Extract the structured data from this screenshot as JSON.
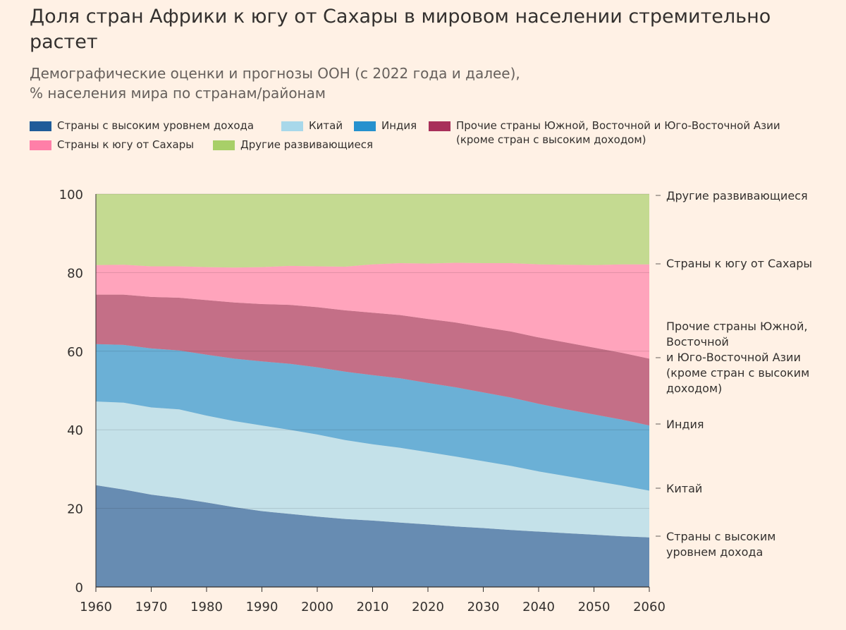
{
  "title": "Доля стран Африки к югу от Сахары в мировом населении стремительно растет",
  "subtitle_line1": "Демографические оценки и прогнозы ООН (с 2022 года и далее),",
  "subtitle_line2": "% населения мира по странам/районам",
  "legend": [
    {
      "label": "Страны с высоким уровнем дохода",
      "color": "#1f5c99"
    },
    {
      "label": "Китай",
      "color": "#a8d8ea"
    },
    {
      "label": "Индия",
      "color": "#2591ce"
    },
    {
      "label": "Прочие страны Южной, Восточной и Юго-Восточной Азии",
      "label_line2": "(кроме стран с высоким доходом)",
      "color": "#a8305a"
    },
    {
      "label": "Страны к югу от Сахары",
      "color": "#ff7fa8"
    },
    {
      "label": "Другие развивающиеся",
      "color": "#a8cf68"
    }
  ],
  "end_labels": {
    "high_income": [
      "Страны с высоким",
      "уровнем дохода"
    ],
    "china": [
      "Китай"
    ],
    "india": [
      "Индия"
    ],
    "other_asia": [
      "Прочие страны Южной,",
      "Восточной",
      "и Юго-Восточной Азии",
      "(кроме стран с высоким",
      "доходом)"
    ],
    "ssa": [
      "Страны к югу от Сахары"
    ],
    "other_dev": [
      "Другие развивающиеся"
    ]
  },
  "chart_data": {
    "type": "area",
    "stacked": true,
    "x": [
      1960,
      1965,
      1970,
      1975,
      1980,
      1985,
      1990,
      1995,
      2000,
      2005,
      2010,
      2015,
      2020,
      2025,
      2030,
      2035,
      2040,
      2045,
      2050,
      2055,
      2060
    ],
    "x_ticks": [
      "1960",
      "1970",
      "1980",
      "1990",
      "2000",
      "2010",
      "2020",
      "2030",
      "2040",
      "2050",
      "2060"
    ],
    "y_ticks": [
      "0",
      "20",
      "40",
      "60",
      "80",
      "100"
    ],
    "ylim": [
      0,
      100
    ],
    "xlim": [
      1960,
      2060
    ],
    "grid": true,
    "legend_position": "top",
    "series": [
      {
        "name": "Страны с высоким уровнем дохода",
        "color": "#1f5c99",
        "values": [
          25.9,
          24.8,
          23.5,
          22.6,
          21.5,
          20.3,
          19.3,
          18.6,
          17.9,
          17.3,
          16.9,
          16.4,
          15.9,
          15.4,
          15.0,
          14.5,
          14.1,
          13.7,
          13.3,
          12.9,
          12.6
        ]
      },
      {
        "name": "Китай",
        "color": "#a8d8ea",
        "values": [
          21.3,
          22.1,
          22.2,
          22.6,
          22.1,
          21.9,
          21.8,
          21.4,
          20.9,
          20.1,
          19.4,
          19.0,
          18.4,
          17.8,
          17.0,
          16.3,
          15.3,
          14.5,
          13.7,
          12.9,
          11.9
        ]
      },
      {
        "name": "Индия",
        "color": "#2591ce",
        "values": [
          14.6,
          14.7,
          15.0,
          15.0,
          15.5,
          15.9,
          16.3,
          16.8,
          17.1,
          17.4,
          17.6,
          17.7,
          17.6,
          17.6,
          17.5,
          17.4,
          17.2,
          17.0,
          16.9,
          16.8,
          16.6
        ]
      },
      {
        "name": "Прочие страны Южной, Восточной и Юго-Восточной Азии (кроме стран с высоким доходом)",
        "color": "#a8305a",
        "values": [
          12.6,
          12.8,
          13.1,
          13.4,
          13.9,
          14.3,
          14.6,
          15.0,
          15.3,
          15.6,
          15.9,
          16.1,
          16.3,
          16.5,
          16.6,
          16.8,
          16.9,
          17.0,
          17.0,
          17.0,
          17.0
        ]
      },
      {
        "name": "Страны к югу от Сахары",
        "color": "#ff7fa8",
        "values": [
          7.5,
          7.6,
          7.8,
          8.0,
          8.4,
          8.9,
          9.4,
          9.9,
          10.4,
          11.1,
          12.3,
          13.2,
          14.1,
          15.2,
          16.3,
          17.4,
          18.6,
          19.8,
          21.0,
          22.5,
          24.0
        ]
      },
      {
        "name": "Другие развивающиеся",
        "color": "#a8cf68",
        "values": [
          18.1,
          18.0,
          18.4,
          18.4,
          18.6,
          18.7,
          18.6,
          18.3,
          18.4,
          18.5,
          17.9,
          17.6,
          17.7,
          17.5,
          17.6,
          17.6,
          17.9,
          18.0,
          18.1,
          17.9,
          17.9
        ]
      }
    ]
  }
}
